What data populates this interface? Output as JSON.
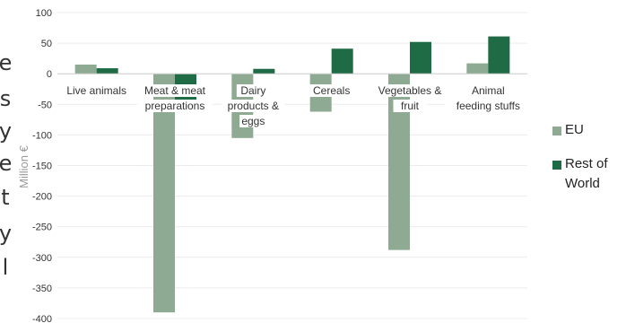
{
  "side_fragment": {
    "chars": [
      "e",
      "s",
      "y",
      "e",
      "t",
      "y",
      "l"
    ]
  },
  "colors": {
    "eu": "#8faa92",
    "rest_of_world": "#1f6b45"
  },
  "chart_data": {
    "type": "bar",
    "categories": [
      "Live animals",
      "Meat & meat preparations",
      "Dairy products & eggs",
      "Cereals",
      "Vegetables & fruit",
      "Animal feeding stuffs"
    ],
    "category_lines": [
      [
        "Live animals"
      ],
      [
        "Meat & meat",
        "preparations"
      ],
      [
        "Dairy",
        "products &",
        "eggs"
      ],
      [
        "Cereals"
      ],
      [
        "Vegetables &",
        "fruit"
      ],
      [
        "Animal",
        "feeding stuffs"
      ]
    ],
    "series": [
      {
        "name": "EU",
        "values": [
          15,
          -390,
          -105,
          -62,
          -288,
          17
        ]
      },
      {
        "name": "Rest of World",
        "values": [
          9,
          -45,
          8,
          41,
          52,
          61
        ]
      }
    ],
    "legend_lines": [
      [
        "EU"
      ],
      [
        "Rest of",
        "World"
      ]
    ],
    "ylabel": "Million €",
    "ylim": [
      -400,
      100
    ],
    "yticks": [
      100,
      50,
      0,
      -50,
      -100,
      -150,
      -200,
      -250,
      -300,
      -350,
      -400
    ],
    "ytick_labels": [
      "100",
      "50",
      "0",
      "-50",
      "-100",
      "-150",
      "-200",
      "-250",
      "-300",
      "-350",
      "-400"
    ],
    "grid": true,
    "legend_position": "right"
  }
}
